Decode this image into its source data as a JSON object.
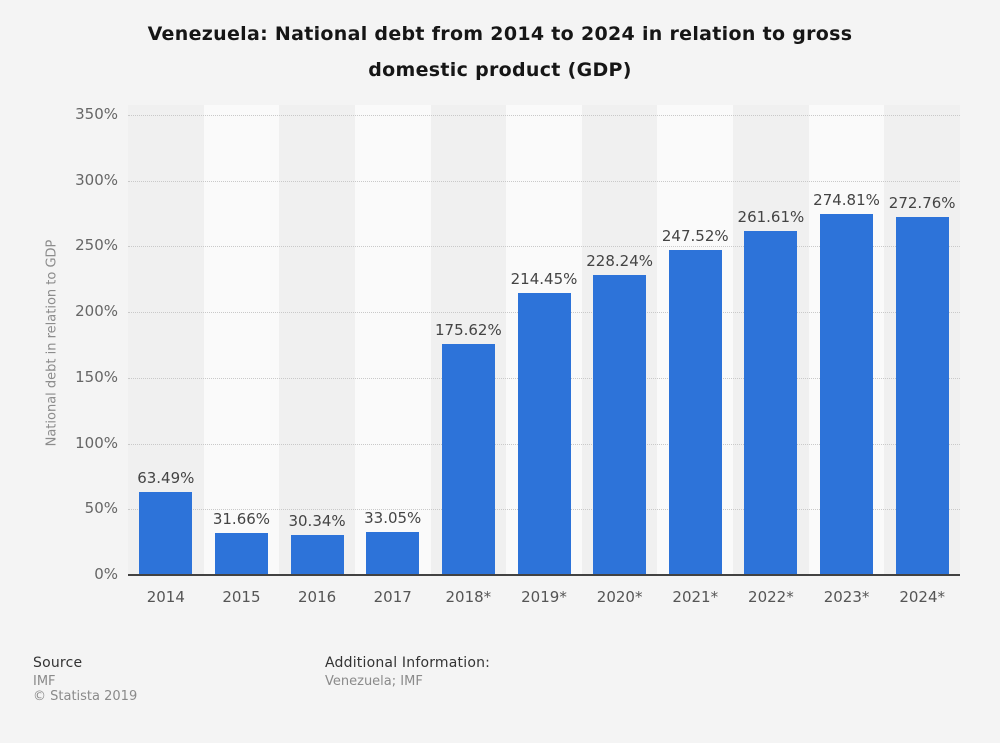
{
  "chart_data": {
    "type": "bar",
    "title": "Venezuela: National debt from 2014 to 2024 in relation to gross\ndomestic product (GDP)",
    "ylabel": "National debt in relation to GDP",
    "xlabel": "",
    "categories": [
      "2014",
      "2015",
      "2016",
      "2017",
      "2018*",
      "2019*",
      "2020*",
      "2021*",
      "2022*",
      "2023*",
      "2024*"
    ],
    "values": [
      63.49,
      31.66,
      30.34,
      33.05,
      175.62,
      214.45,
      228.24,
      247.52,
      261.61,
      274.81,
      272.76
    ],
    "labels": [
      "63.49%",
      "31.66%",
      "30.34%",
      "33.05%",
      "175.62%",
      "214.45%",
      "228.24%",
      "247.52%",
      "261.61%",
      "274.81%",
      "272.76%"
    ],
    "ylim": [
      0,
      350
    ],
    "ytick_step": 50,
    "yticks": [
      "0%",
      "50%",
      "100%",
      "150%",
      "200%",
      "250%",
      "300%",
      "350%"
    ],
    "grid": "horizontal dotted",
    "legend": "none"
  },
  "colors": {
    "bar": "#2d73d9",
    "stripe_dark": "#f0f0f0",
    "stripe_light": "#fafafa",
    "gridline": "#c9c9c9",
    "axis_line": "#424242",
    "background": "#f4f4f4"
  },
  "footer": {
    "source_label": "Source",
    "source_value": "IMF",
    "copyright": "© Statista 2019",
    "additional_label": "Additional Information:",
    "additional_value": "Venezuela; IMF"
  }
}
